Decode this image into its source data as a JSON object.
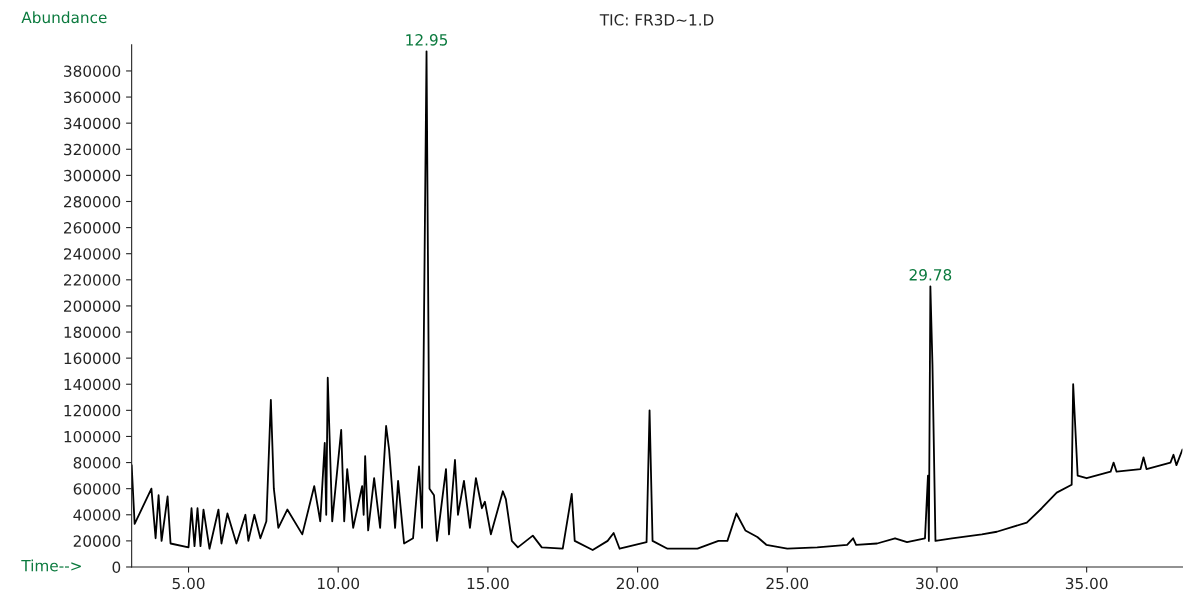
{
  "chart_data": {
    "type": "line",
    "title": "TIC: FR3D~1.D",
    "xlabel": "Time-->",
    "ylabel": "Abundance",
    "x": [
      3.1,
      3.2,
      3.76,
      3.9,
      4.0,
      4.1,
      4.3,
      4.4,
      5.0,
      5.1,
      5.2,
      5.3,
      5.4,
      5.5,
      5.7,
      6.0,
      6.1,
      6.3,
      6.6,
      6.9,
      7.0,
      7.2,
      7.4,
      7.6,
      7.75,
      7.85,
      8.0,
      8.3,
      8.8,
      9.2,
      9.4,
      9.55,
      9.6,
      9.65,
      9.8,
      10.1,
      10.2,
      10.3,
      10.5,
      10.8,
      10.85,
      10.9,
      11.0,
      11.2,
      11.4,
      11.6,
      11.7,
      11.9,
      12.0,
      12.2,
      12.5,
      12.7,
      12.8,
      12.95,
      13.05,
      13.2,
      13.3,
      13.6,
      13.7,
      13.9,
      14.0,
      14.2,
      14.4,
      14.6,
      14.8,
      14.9,
      15.1,
      15.5,
      15.6,
      15.8,
      16.0,
      16.5,
      16.8,
      17.5,
      17.8,
      17.9,
      18.5,
      19.0,
      19.2,
      19.4,
      20.3,
      20.4,
      20.5,
      21.0,
      22.0,
      22.7,
      23.0,
      23.3,
      23.6,
      24.0,
      24.3,
      25.0,
      26.0,
      27.0,
      27.2,
      27.3,
      28.0,
      28.6,
      29.0,
      29.6,
      29.7,
      29.73,
      29.78,
      29.85,
      29.95,
      30.5,
      31.5,
      32.0,
      33.0,
      33.5,
      34.0,
      34.5,
      34.55,
      34.7,
      35.0,
      35.8,
      35.9,
      36.0,
      36.8,
      36.9,
      37.0,
      37.8,
      37.9,
      38.0,
      38.2
    ],
    "series": [
      {
        "color": "#000000",
        "values": [
          78000,
          33000,
          60000,
          22000,
          55000,
          20000,
          54000,
          18000,
          15000,
          45000,
          16000,
          45000,
          16000,
          44000,
          14000,
          44000,
          18000,
          41000,
          18000,
          40000,
          20000,
          40000,
          22000,
          35000,
          128000,
          60000,
          30000,
          44000,
          25000,
          62000,
          35000,
          95000,
          40000,
          145000,
          35000,
          105000,
          35000,
          75000,
          30000,
          62000,
          40000,
          85000,
          28000,
          68000,
          30000,
          108000,
          90000,
          30000,
          66000,
          18000,
          22000,
          77000,
          30000,
          395000,
          60000,
          55000,
          20000,
          75000,
          25000,
          82000,
          40000,
          66000,
          30000,
          68000,
          45000,
          50000,
          25000,
          58000,
          52000,
          20000,
          15000,
          24000,
          15000,
          14000,
          56000,
          20000,
          13000,
          20000,
          26000,
          14000,
          19000,
          120000,
          20000,
          14000,
          14000,
          20000,
          20000,
          41000,
          28000,
          23000,
          17000,
          14000,
          15000,
          17000,
          22000,
          17000,
          18000,
          22000,
          19000,
          22000,
          70000,
          20000,
          215000,
          155000,
          20000,
          22000,
          25000,
          27000,
          34000,
          45000,
          57000,
          63000,
          140000,
          70000,
          68000,
          73000,
          80000,
          73000,
          75000,
          84000,
          75000,
          80000,
          86000,
          78000,
          90000
        ]
      }
    ],
    "xlim": [
      3.1,
      38.2
    ],
    "ylim": [
      0,
      400000
    ],
    "xticks": [
      {
        "value": 5,
        "label": "5.00"
      },
      {
        "value": 10,
        "label": "10.00"
      },
      {
        "value": 15,
        "label": "15.00"
      },
      {
        "value": 20,
        "label": "20.00"
      },
      {
        "value": 25,
        "label": "25.00"
      },
      {
        "value": 30,
        "label": "30.00"
      },
      {
        "value": 35,
        "label": "35.00"
      }
    ],
    "yticks": [
      0,
      20000,
      40000,
      60000,
      80000,
      100000,
      120000,
      140000,
      160000,
      180000,
      200000,
      220000,
      240000,
      260000,
      280000,
      300000,
      320000,
      340000,
      360000,
      380000
    ],
    "annotations": [
      {
        "text": "12.95",
        "x": 12.95,
        "y": 395000
      },
      {
        "text": "29.78",
        "x": 29.78,
        "y": 215000
      }
    ]
  }
}
